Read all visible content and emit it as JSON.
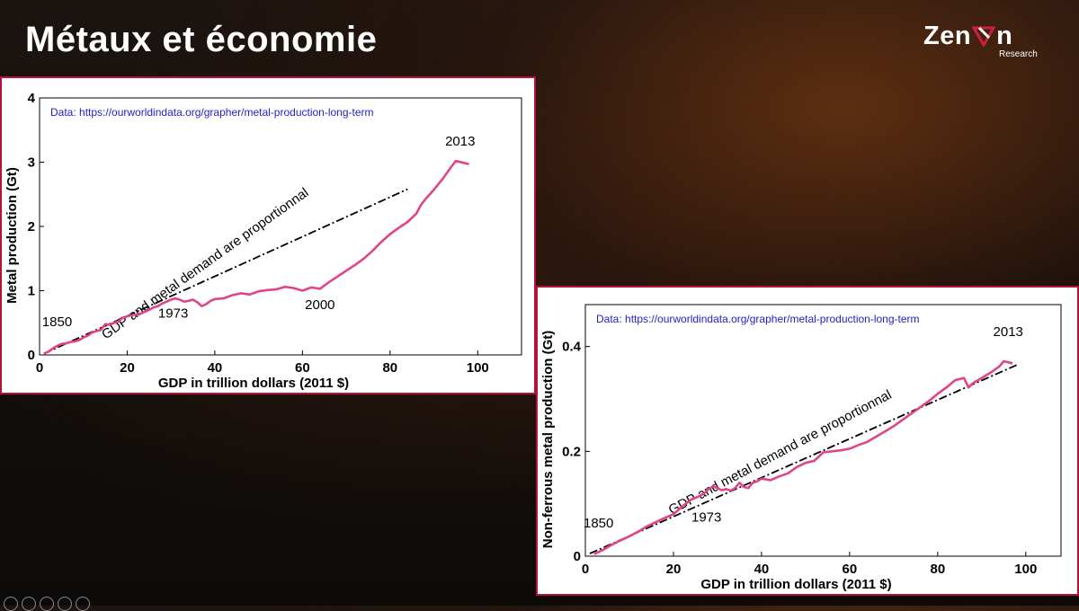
{
  "slide": {
    "title": "Métaux et économie"
  },
  "logo": {
    "word_left": "Zen",
    "word_right": "n",
    "subtitle": "Research",
    "accent": "#d11e48"
  },
  "colors": {
    "frame": "#b5123a",
    "line": "#e0448a",
    "link": "#2222cc",
    "trend": "#000000"
  },
  "chart_data": [
    {
      "type": "line",
      "source": "Data: https://ourworldindata.org/grapher/metal-production-long-term",
      "xlabel": "GDP in trillion dollars (2011 $)",
      "ylabel": "Metal production (Gt)",
      "xlim": [
        0,
        110
      ],
      "ylim": [
        0,
        4
      ],
      "xticks": [
        0,
        20,
        40,
        60,
        80,
        100
      ],
      "yticks": [
        0,
        1,
        2,
        3,
        4
      ],
      "trend_label": "GDP and metal demand are proportionnal",
      "trend": {
        "x": [
          1,
          84
        ],
        "y": [
          0.02,
          2.58
        ]
      },
      "annotations": [
        {
          "text": "1850",
          "x": 4,
          "y": 0.45
        },
        {
          "text": "1973",
          "x": 30.5,
          "y": 0.58
        },
        {
          "text": "2000",
          "x": 64,
          "y": 0.71
        },
        {
          "text": "2013",
          "x": 96,
          "y": 3.26
        }
      ],
      "series": [
        {
          "x": [
            1,
            2,
            3,
            4,
            5,
            6,
            7,
            8,
            9,
            10,
            11,
            12,
            13,
            14,
            15,
            16,
            17,
            18,
            19,
            20,
            21,
            22,
            23,
            24,
            25,
            26,
            27,
            28,
            29,
            30,
            31,
            32,
            33,
            34,
            35,
            36,
            37,
            38,
            39,
            40,
            42,
            44,
            46,
            48,
            50,
            52,
            54,
            56,
            58,
            60,
            62,
            64,
            66,
            68,
            70,
            72,
            74,
            76,
            78,
            80,
            82,
            84,
            86,
            87,
            88,
            90,
            92,
            94,
            95,
            98
          ],
          "y": [
            0.02,
            0.05,
            0.1,
            0.14,
            0.17,
            0.18,
            0.2,
            0.21,
            0.23,
            0.27,
            0.3,
            0.35,
            0.37,
            0.39,
            0.48,
            0.47,
            0.5,
            0.52,
            0.58,
            0.6,
            0.62,
            0.63,
            0.64,
            0.67,
            0.7,
            0.74,
            0.76,
            0.8,
            0.83,
            0.86,
            0.88,
            0.86,
            0.83,
            0.84,
            0.86,
            0.82,
            0.76,
            0.79,
            0.84,
            0.87,
            0.88,
            0.93,
            0.96,
            0.94,
            0.99,
            1.01,
            1.02,
            1.06,
            1.04,
            1.0,
            1.05,
            1.03,
            1.13,
            1.22,
            1.31,
            1.4,
            1.5,
            1.62,
            1.76,
            1.88,
            1.98,
            2.07,
            2.2,
            2.33,
            2.42,
            2.57,
            2.74,
            2.93,
            3.02,
            2.97
          ]
        }
      ]
    },
    {
      "type": "line",
      "source": "Data: https://ourworldindata.org/grapher/metal-production-long-term",
      "xlabel": "GDP in trillion dollars (2011 $)",
      "ylabel": "Non-ferrous metal production (Gt)",
      "xlim": [
        0,
        108
      ],
      "ylim": [
        0,
        0.48
      ],
      "xticks": [
        0,
        20,
        40,
        60,
        80,
        100
      ],
      "yticks": [
        0,
        0.2,
        0.4
      ],
      "ytick_labels": [
        "0",
        "0.2",
        "0.4"
      ],
      "trend_label": "GDP and metal demand are proportionnal",
      "trend": {
        "x": [
          1,
          98
        ],
        "y": [
          0.005,
          0.365
        ]
      },
      "annotations": [
        {
          "text": "1850",
          "x": 3,
          "y": 0.055
        },
        {
          "text": "1973",
          "x": 27.5,
          "y": 0.066
        },
        {
          "text": "2013",
          "x": 96,
          "y": 0.42
        }
      ],
      "series": [
        {
          "x": [
            2,
            4,
            6,
            8,
            10,
            12,
            14,
            16,
            18,
            20,
            22,
            24,
            26,
            27,
            28,
            29,
            30,
            31,
            32,
            33,
            34,
            35,
            36,
            37,
            38,
            39,
            40,
            42,
            44,
            46,
            48,
            50,
            52,
            54,
            56,
            58,
            60,
            62,
            64,
            66,
            68,
            70,
            72,
            74,
            76,
            78,
            80,
            82,
            84,
            86,
            87,
            88,
            90,
            92,
            94,
            95,
            97
          ],
          "y": [
            0.004,
            0.012,
            0.022,
            0.03,
            0.038,
            0.047,
            0.057,
            0.065,
            0.073,
            0.08,
            0.095,
            0.108,
            0.115,
            0.12,
            0.128,
            0.133,
            0.13,
            0.126,
            0.128,
            0.125,
            0.13,
            0.14,
            0.132,
            0.13,
            0.14,
            0.143,
            0.148,
            0.145,
            0.152,
            0.158,
            0.17,
            0.178,
            0.182,
            0.198,
            0.2,
            0.202,
            0.205,
            0.212,
            0.218,
            0.228,
            0.238,
            0.248,
            0.26,
            0.272,
            0.284,
            0.296,
            0.31,
            0.322,
            0.336,
            0.34,
            0.322,
            0.33,
            0.34,
            0.35,
            0.362,
            0.372,
            0.368
          ]
        }
      ]
    }
  ]
}
